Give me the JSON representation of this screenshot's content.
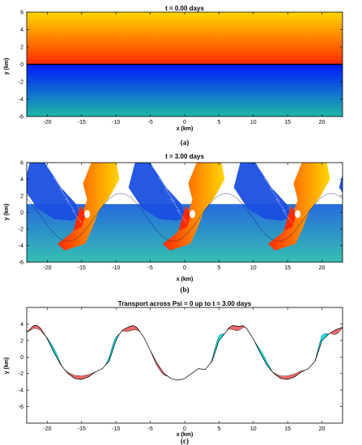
{
  "colors": {
    "upper_top": "#ffd700",
    "upper_bottom": "#ff2a00",
    "lower_top": "#0018ff",
    "lower_bottom": "#1fb8a8",
    "front": "#000000",
    "transport_pos": "#f26b6b",
    "transport_neg": "#00e8f0"
  },
  "chart_data": [
    {
      "type": "heatmap",
      "title": "t = 0.00 days",
      "xlabel": "x (km)",
      "ylabel": "y (km)",
      "caption": "(a)",
      "xlim": [
        -23,
        23
      ],
      "ylim": [
        -6,
        6
      ],
      "xticks": [
        -20,
        -15,
        -10,
        -5,
        0,
        5,
        10,
        15,
        20
      ],
      "yticks": [
        -6,
        -4,
        -2,
        0,
        2,
        4,
        6
      ],
      "front_y": 0
    },
    {
      "type": "heatmap",
      "title": "t = 3.00 days",
      "xlabel": "x (km)",
      "ylabel": "y (km)",
      "caption": "(b)",
      "xlim": [
        -23,
        23
      ],
      "ylim": [
        -6,
        6
      ],
      "xticks": [
        -20,
        -15,
        -10,
        -5,
        0,
        5,
        10,
        15,
        20
      ],
      "yticks": [
        -6,
        -4,
        -2,
        0,
        2,
        4,
        6
      ],
      "wavelength": 15.33
    },
    {
      "type": "line",
      "title": "Transport across Psi = 0 up to t = 3.00 days",
      "xlabel": "x (km)",
      "ylabel": "y (km)",
      "caption": "(c)",
      "xlim": [
        -23,
        23
      ],
      "ylim": [
        -8,
        6
      ],
      "xticks": [
        -20,
        -15,
        -10,
        -5,
        0,
        5,
        10,
        15,
        20
      ],
      "yticks": [
        -6,
        -4,
        -2,
        0,
        2,
        4
      ],
      "series": [
        {
          "x": [
            -23,
            -22,
            -21.5,
            -21,
            -20,
            -19,
            -18,
            -17,
            -16,
            -15,
            -14,
            -13,
            -12,
            -11,
            -10,
            -9.5,
            -9,
            -8,
            -7.5,
            -7,
            -6,
            -5,
            -4,
            -3,
            -2,
            -1,
            0,
            1,
            2,
            3,
            4,
            5,
            6,
            6.5,
            7,
            8,
            8.5,
            9,
            10,
            11,
            12,
            13,
            14,
            15,
            16,
            17,
            18,
            19,
            20,
            21,
            22,
            23
          ],
          "y": [
            3.0,
            3.8,
            3.8,
            3.5,
            2.2,
            0.5,
            -1.0,
            -2.0,
            -2.6,
            -2.7,
            -2.4,
            -1.8,
            -1.4,
            -0.5,
            2.0,
            2.8,
            3.3,
            3.7,
            3.8,
            3.6,
            2.5,
            0.8,
            -0.8,
            -2.0,
            -2.6,
            -2.8,
            -2.6,
            -2.0,
            -1.4,
            -1.5,
            -0.5,
            2.0,
            3.0,
            3.6,
            3.8,
            3.7,
            3.8,
            3.5,
            2.2,
            0.5,
            -1.0,
            -2.0,
            -2.6,
            -2.7,
            -2.4,
            -1.8,
            -1.4,
            -0.5,
            2.0,
            2.8,
            3.3,
            3.6
          ]
        }
      ]
    }
  ]
}
